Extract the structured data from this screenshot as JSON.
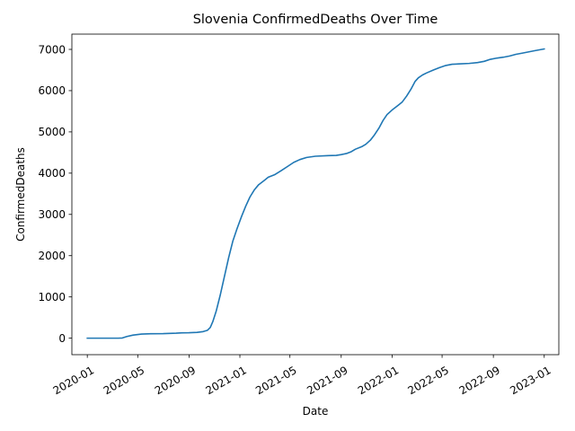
{
  "chart_data": {
    "type": "line",
    "title": "Slovenia  ConfirmedDeaths Over Time",
    "xlabel": "Date",
    "ylabel": "ConfirmedDeaths",
    "xlim": [
      "2019-11-25",
      "2023-02-05"
    ],
    "ylim": [
      -400,
      7370
    ],
    "x_ticks": [
      "2020-01",
      "2020-05",
      "2020-09",
      "2021-01",
      "2021-05",
      "2021-09",
      "2022-01",
      "2022-05",
      "2022-09",
      "2023-01"
    ],
    "x_tick_dates": [
      "2020-01-01",
      "2020-05-01",
      "2020-09-01",
      "2021-01-01",
      "2021-05-01",
      "2021-09-01",
      "2022-01-01",
      "2022-05-01",
      "2022-09-01",
      "2023-01-01"
    ],
    "y_ticks": [
      0,
      1000,
      2000,
      3000,
      4000,
      5000,
      6000,
      7000
    ],
    "x_tick_rotation": 30,
    "grid": false,
    "series": [
      {
        "color": "#1f77b4",
        "points": [
          [
            "2020-01-01",
            0
          ],
          [
            "2020-03-15",
            0
          ],
          [
            "2020-03-25",
            5
          ],
          [
            "2020-04-05",
            40
          ],
          [
            "2020-04-20",
            75
          ],
          [
            "2020-05-10",
            100
          ],
          [
            "2020-06-01",
            108
          ],
          [
            "2020-07-01",
            110
          ],
          [
            "2020-08-01",
            120
          ],
          [
            "2020-08-15",
            130
          ],
          [
            "2020-09-01",
            132
          ],
          [
            "2020-09-20",
            140
          ],
          [
            "2020-10-05",
            160
          ],
          [
            "2020-10-15",
            190
          ],
          [
            "2020-10-22",
            260
          ],
          [
            "2020-10-28",
            400
          ],
          [
            "2020-11-05",
            650
          ],
          [
            "2020-11-15",
            1050
          ],
          [
            "2020-11-25",
            1500
          ],
          [
            "2020-12-05",
            1950
          ],
          [
            "2020-12-15",
            2350
          ],
          [
            "2020-12-25",
            2650
          ],
          [
            "2021-01-05",
            2950
          ],
          [
            "2021-01-15",
            3200
          ],
          [
            "2021-01-25",
            3420
          ],
          [
            "2021-02-05",
            3600
          ],
          [
            "2021-02-15",
            3720
          ],
          [
            "2021-02-28",
            3820
          ],
          [
            "2021-03-10",
            3900
          ],
          [
            "2021-03-25",
            3960
          ],
          [
            "2021-04-10",
            4060
          ],
          [
            "2021-04-25",
            4160
          ],
          [
            "2021-05-10",
            4260
          ],
          [
            "2021-05-25",
            4330
          ],
          [
            "2021-06-10",
            4380
          ],
          [
            "2021-07-01",
            4410
          ],
          [
            "2021-08-01",
            4425
          ],
          [
            "2021-08-20",
            4430
          ],
          [
            "2021-09-01",
            4450
          ],
          [
            "2021-09-15",
            4480
          ],
          [
            "2021-09-25",
            4520
          ],
          [
            "2021-10-05",
            4580
          ],
          [
            "2021-10-20",
            4640
          ],
          [
            "2021-10-30",
            4700
          ],
          [
            "2021-11-10",
            4800
          ],
          [
            "2021-11-20",
            4930
          ],
          [
            "2021-12-01",
            5100
          ],
          [
            "2021-12-10",
            5270
          ],
          [
            "2021-12-20",
            5420
          ],
          [
            "2022-01-01",
            5530
          ],
          [
            "2022-01-15",
            5640
          ],
          [
            "2022-01-25",
            5720
          ],
          [
            "2022-02-05",
            5870
          ],
          [
            "2022-02-15",
            6030
          ],
          [
            "2022-02-25",
            6220
          ],
          [
            "2022-03-05",
            6310
          ],
          [
            "2022-03-15",
            6380
          ],
          [
            "2022-03-25",
            6430
          ],
          [
            "2022-04-10",
            6500
          ],
          [
            "2022-04-25",
            6560
          ],
          [
            "2022-05-10",
            6610
          ],
          [
            "2022-05-25",
            6640
          ],
          [
            "2022-06-15",
            6650
          ],
          [
            "2022-07-05",
            6660
          ],
          [
            "2022-07-25",
            6680
          ],
          [
            "2022-08-10",
            6710
          ],
          [
            "2022-08-25",
            6760
          ],
          [
            "2022-09-10",
            6790
          ],
          [
            "2022-09-25",
            6810
          ],
          [
            "2022-10-10",
            6840
          ],
          [
            "2022-10-25",
            6880
          ],
          [
            "2022-11-10",
            6910
          ],
          [
            "2022-11-25",
            6940
          ],
          [
            "2022-12-10",
            6970
          ],
          [
            "2023-01-01",
            7010
          ]
        ]
      }
    ]
  }
}
